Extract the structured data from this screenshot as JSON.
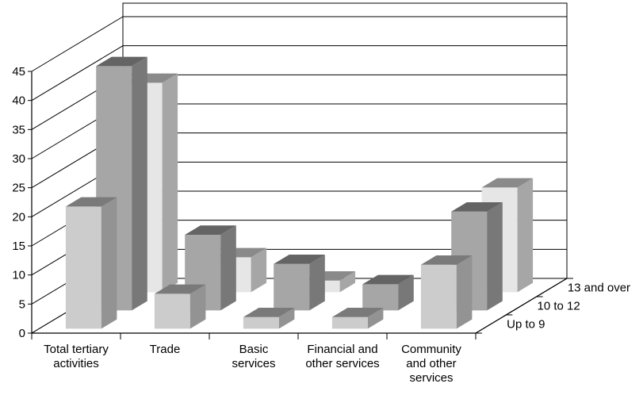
{
  "chart_data": {
    "type": "bar",
    "title": "",
    "xlabel": "",
    "ylabel": "",
    "ylim": [
      0,
      45
    ],
    "yticks": [
      0,
      5,
      10,
      15,
      20,
      25,
      30,
      35,
      40,
      45
    ],
    "grid": true,
    "categories": [
      [
        "Total tertiary",
        "activities"
      ],
      [
        "Trade"
      ],
      [
        "Basic",
        "services"
      ],
      [
        "Financial and",
        "other services"
      ],
      [
        "Community",
        "and other",
        "services"
      ]
    ],
    "series": [
      {
        "name": "Up to 9",
        "color": "#cccccc",
        "values": [
          21,
          6,
          2,
          2,
          11
        ]
      },
      {
        "name": "10 to 12",
        "color": "#a6a6a6",
        "values": [
          42,
          13,
          8,
          4.5,
          17
        ]
      },
      {
        "name": "13 and over",
        "color": "#e6e6e6",
        "values": [
          36,
          6,
          2,
          0,
          18
        ]
      }
    ]
  }
}
